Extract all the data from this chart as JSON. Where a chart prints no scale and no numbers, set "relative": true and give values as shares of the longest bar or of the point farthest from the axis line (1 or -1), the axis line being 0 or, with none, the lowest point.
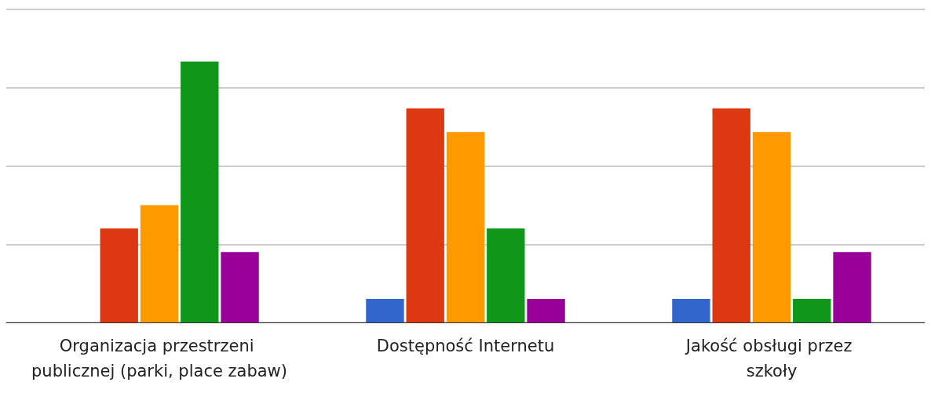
{
  "chart_data": {
    "type": "bar",
    "relative": true,
    "grid": "y",
    "categories": [
      "Organizacja przestrzeni publicznej (parki, place zabaw)",
      "Dostępność Internetu",
      "Jakość obsługi przez szkoły"
    ],
    "series": [
      {
        "color": "#3366cc",
        "values": [
          0,
          0.09,
          0.09
        ]
      },
      {
        "color": "#dc3912",
        "values": [
          0.36,
          0.82,
          0.82
        ]
      },
      {
        "color": "#ff9900",
        "values": [
          0.45,
          0.73,
          0.73
        ]
      },
      {
        "color": "#109618",
        "values": [
          1,
          0.36,
          0.09
        ]
      },
      {
        "color": "#990099",
        "values": [
          0.27,
          0.09,
          0.27
        ]
      }
    ]
  }
}
